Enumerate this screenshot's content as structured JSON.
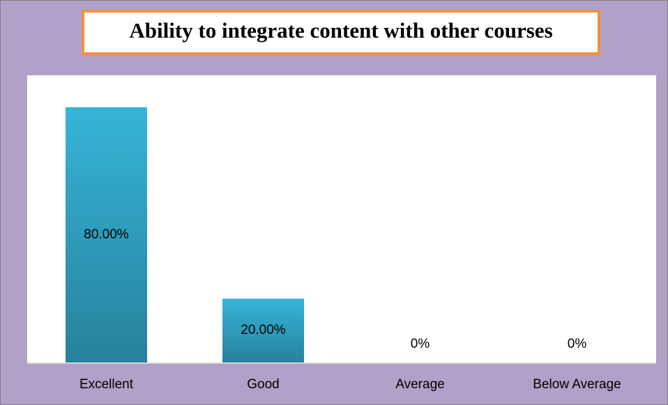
{
  "chart_data": {
    "type": "bar",
    "title": "Ability to integrate content with other courses",
    "categories": [
      "Excellent",
      "Good",
      "Average",
      "Below Average"
    ],
    "values": [
      80,
      20,
      0,
      0
    ],
    "value_labels": [
      "80.00%",
      "20.00%",
      "0%",
      "0%"
    ],
    "color": "#36b4d8",
    "ylim": [
      0,
      90
    ]
  }
}
